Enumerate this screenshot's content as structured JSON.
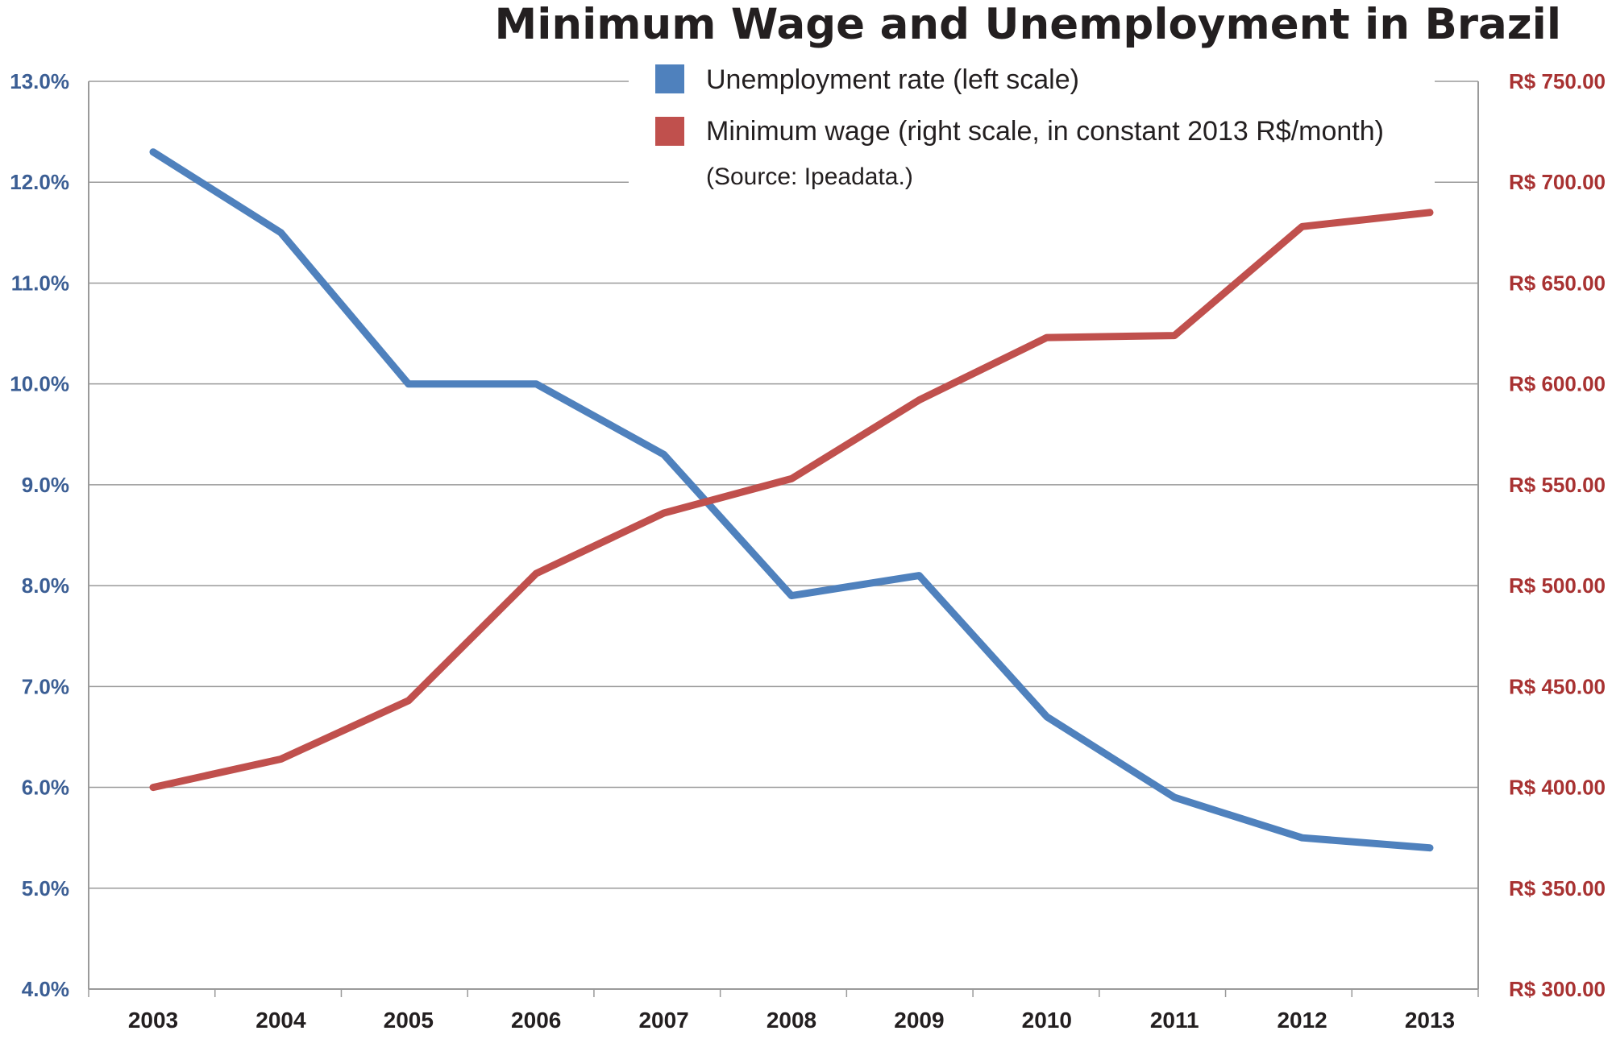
{
  "colors": {
    "unemployment": "#4f81bd",
    "wage": "#c0504d",
    "left_axis_text": "#3b5e94",
    "right_axis_text": "#a83232",
    "grid": "#9a9a9a",
    "text": "#231f20"
  },
  "chart_data": {
    "type": "line",
    "title": "Minimum Wage and Unemployment in Brazil",
    "source_note": "(Source: Ipeadata.)",
    "legend_position": "top-right",
    "grid": true,
    "x": [
      "2003",
      "2004",
      "2005",
      "2006",
      "2007",
      "2008",
      "2009",
      "2010",
      "2011",
      "2012",
      "2013"
    ],
    "y_left_ticks": [
      "13.0%",
      "12.0%",
      "11.0%",
      "10.0%",
      "9.0%",
      "8.0%",
      "7.0%",
      "6.0%",
      "5.0%",
      "4.0%"
    ],
    "y_right_ticks": [
      "R$ 750.00",
      "R$ 700.00",
      "R$ 650.00",
      "R$ 600.00",
      "R$ 550.00",
      "R$ 500.00",
      "R$ 450.00",
      "R$ 400.00",
      "R$ 350.00",
      "R$ 300.00"
    ],
    "y_left_lim": [
      4.0,
      13.0
    ],
    "y_right_lim": [
      300,
      750
    ],
    "series": [
      {
        "name": "Unemployment rate (left scale)",
        "axis": "left",
        "color": "#4f81bd",
        "values": [
          12.3,
          11.5,
          10.0,
          10.0,
          9.3,
          7.9,
          8.1,
          6.7,
          5.9,
          5.5,
          5.4
        ]
      },
      {
        "name": "Minimum wage (right scale, in constant 2013 R$/month)",
        "axis": "right",
        "color": "#c0504d",
        "values": [
          400,
          414,
          443,
          506,
          536,
          553,
          592,
          623,
          624,
          678,
          685
        ]
      }
    ]
  }
}
